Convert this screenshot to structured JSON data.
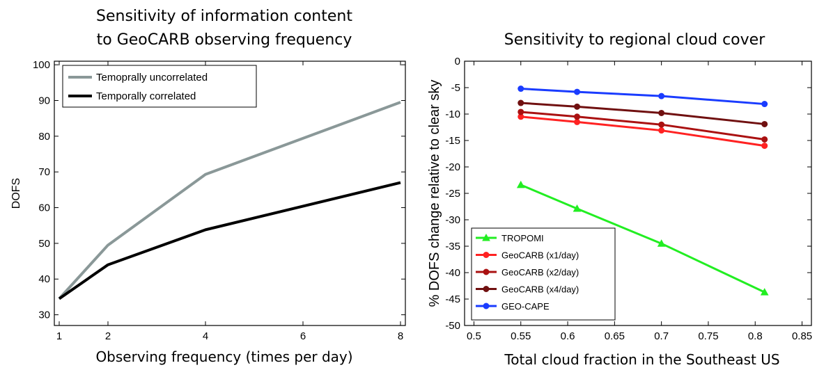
{
  "chart_data": [
    {
      "type": "line",
      "title": [
        "Sensitivity of information content",
        "to GeoCARB observing frequency"
      ],
      "xlabel": "Observing frequency (times per day)",
      "ylabel": "DOFS",
      "xlim": [
        0.9,
        8.1
      ],
      "ylim": [
        27,
        101
      ],
      "xticks": [
        1,
        2,
        4,
        6,
        8
      ],
      "yticks": [
        30,
        40,
        50,
        60,
        70,
        80,
        90,
        100
      ],
      "legend_position": "top-left",
      "series": [
        {
          "name": "Temoprally uncorrelated",
          "color": "#8a9898",
          "x": [
            1,
            2,
            4,
            8
          ],
          "y": [
            34.5,
            49.5,
            69.3,
            89.5
          ]
        },
        {
          "name": "Temporally correlated",
          "color": "#000000",
          "x": [
            1,
            2,
            4,
            8
          ],
          "y": [
            34.5,
            44.0,
            53.8,
            67.0
          ]
        }
      ]
    },
    {
      "type": "line",
      "title": "Sensitivity to regional cloud cover",
      "xlabel": "Total cloud fraction in the Southeast US",
      "ylabel": "% DOFS change relative to clear sky",
      "xlim": [
        0.49,
        0.86
      ],
      "ylim": [
        -50,
        0
      ],
      "xticks": [
        0.5,
        0.55,
        0.6,
        0.65,
        0.7,
        0.75,
        0.8,
        0.85
      ],
      "yticks": [
        0,
        -5,
        -10,
        -15,
        -20,
        -25,
        -30,
        -35,
        -40,
        -45,
        -50
      ],
      "legend_position": "bottom-left",
      "series": [
        {
          "name": "TROPOMI",
          "color": "#22ee22",
          "marker": "triangle",
          "x": [
            0.55,
            0.61,
            0.7,
            0.81
          ],
          "y": [
            -23.4,
            -27.9,
            -34.5,
            -43.7
          ]
        },
        {
          "name": "GeoCARB (x1/day)",
          "color": "#ff2222",
          "marker": "circle",
          "x": [
            0.55,
            0.61,
            0.7,
            0.81
          ],
          "y": [
            -10.5,
            -11.5,
            -13.1,
            -16.0
          ]
        },
        {
          "name": "GeoCARB (x2/day)",
          "color": "#aa1111",
          "marker": "circle",
          "x": [
            0.55,
            0.61,
            0.7,
            0.81
          ],
          "y": [
            -9.6,
            -10.5,
            -12.0,
            -14.8
          ]
        },
        {
          "name": "GeoCARB (x4/day)",
          "color": "#701010",
          "marker": "circle",
          "x": [
            0.55,
            0.61,
            0.7,
            0.81
          ],
          "y": [
            -7.9,
            -8.6,
            -9.8,
            -11.9
          ]
        },
        {
          "name": "GEO-CAPE",
          "color": "#1a3cff",
          "marker": "circle",
          "x": [
            0.55,
            0.61,
            0.7,
            0.81
          ],
          "y": [
            -5.2,
            -5.8,
            -6.6,
            -8.1
          ]
        }
      ]
    }
  ]
}
